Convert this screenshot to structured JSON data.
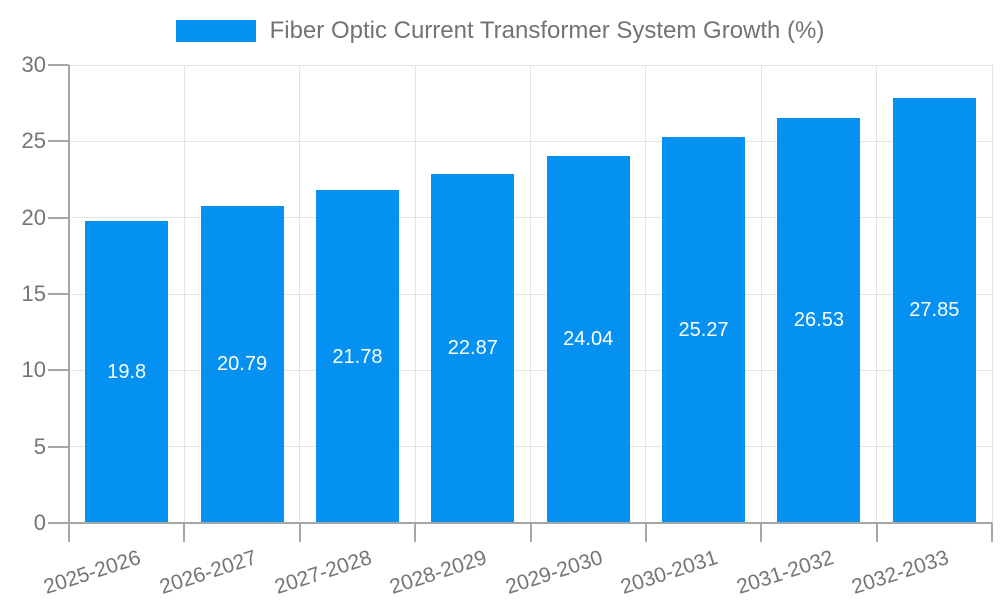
{
  "legend": {
    "swatch_icon": "legend-swatch",
    "position": "top-center"
  },
  "chart_data": {
    "type": "bar",
    "title": "Fiber Optic Current Transformer System Growth (%)",
    "categories": [
      "2025-2026",
      "2026-2027",
      "2027-2028",
      "2028-2029",
      "2029-2030",
      "2030-2031",
      "2031-2032",
      "2032-2033"
    ],
    "values": [
      19.8,
      20.79,
      21.78,
      22.87,
      24.04,
      25.27,
      26.53,
      27.85
    ],
    "data_labels": [
      "19.8",
      "20.79",
      "21.78",
      "22.87",
      "24.04",
      "25.27",
      "26.53",
      "27.85"
    ],
    "xlabel": "",
    "ylabel": "",
    "ylim": [
      0,
      30
    ],
    "yticks": [
      0,
      5,
      10,
      15,
      20,
      25,
      30
    ],
    "grid": true,
    "legend_position": "top",
    "data_label_position": "middle",
    "x_tick_rotation_deg": -18,
    "colors": {
      "bar": "#0591F2",
      "bar_label_text": "#ffffff",
      "axis_text": "#757575",
      "legend_text": "#737373",
      "grid_line": "#e4e4e4",
      "axis_line": "#a6a6a6",
      "background": "#ffffff"
    }
  }
}
